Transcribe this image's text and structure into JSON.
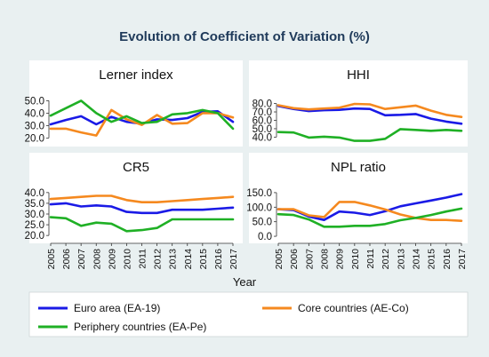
{
  "chart_data": {
    "title": "Evolution of Coefficient of Variation (%)",
    "type": "line",
    "xlabel": "Year",
    "x": [
      2005,
      2006,
      2007,
      2008,
      2009,
      2010,
      2011,
      2012,
      2013,
      2014,
      2015,
      2016,
      2017
    ],
    "colors": {
      "euro": "#1a1ae6",
      "core": "#f5891f",
      "periphery": "#1fb025"
    },
    "legend": {
      "placement": "bottom",
      "items": [
        {
          "key": "euro",
          "label": "Euro area (EA-19)"
        },
        {
          "key": "core",
          "label": "Core countries (AE-Co)"
        },
        {
          "key": "periphery",
          "label": "Periphery countries (EA-Pe)"
        }
      ]
    },
    "panels": [
      {
        "title": "Lerner index",
        "yticks": [
          20.0,
          30.0,
          40.0,
          50.0
        ],
        "ytick_labels": [
          "20.0",
          "30.0",
          "40.0",
          "50.0"
        ],
        "ylim": [
          16,
          56
        ],
        "series": [
          {
            "key": "euro",
            "values": [
              31,
              34.5,
              37.5,
              31,
              37,
              33,
              31.5,
              35,
              34.5,
              36,
              41,
              41.5,
              33
            ]
          },
          {
            "key": "core",
            "values": [
              27.5,
              27.5,
              24.5,
              22,
              42.5,
              35,
              30.5,
              38.5,
              31.5,
              32,
              40,
              40,
              36.5
            ]
          },
          {
            "key": "periphery",
            "values": [
              38,
              44,
              50,
              40,
              33,
              37.5,
              32,
              33,
              39,
              40,
              42.5,
              40,
              27.5
            ]
          }
        ]
      },
      {
        "title": "HHI",
        "yticks": [
          40.0,
          50.0,
          60.0,
          70.0,
          80.0
        ],
        "ytick_labels": [
          "40.0",
          "50.0",
          "60.0",
          "70.0",
          "80.0"
        ],
        "ylim": [
          33,
          88
        ],
        "series": [
          {
            "key": "euro",
            "values": [
              77,
              73.5,
              71,
              72,
              72.5,
              74,
              73.5,
              66,
              66.5,
              67.5,
              62,
              58.5,
              56
            ]
          },
          {
            "key": "core",
            "values": [
              78,
              74.5,
              73,
              74,
              75,
              79.5,
              79,
              73.5,
              75.5,
              77.5,
              71.5,
              66.5,
              64
            ]
          },
          {
            "key": "periphery",
            "values": [
              46,
              45.5,
              39.5,
              40.5,
              39.5,
              35.5,
              35.5,
              38,
              49.5,
              48.5,
              47.5,
              48.5,
              47.5
            ]
          }
        ]
      },
      {
        "title": "CR5",
        "yticks": [
          20.0,
          25.0,
          30.0,
          35.0,
          40.0
        ],
        "ytick_labels": [
          "20.0",
          "25.0",
          "30.0",
          "35.0",
          "40.0"
        ],
        "ylim": [
          18,
          42
        ],
        "series": [
          {
            "key": "euro",
            "values": [
              34.5,
              35,
              33.5,
              34,
              33.5,
              31,
              30.5,
              30.5,
              32,
              32,
              32,
              32.5,
              33
            ]
          },
          {
            "key": "core",
            "values": [
              37,
              37.5,
              38,
              38.5,
              38.5,
              36.5,
              35.5,
              35.5,
              36,
              36.5,
              37,
              37.5,
              38
            ]
          },
          {
            "key": "periphery",
            "values": [
              28.5,
              28,
              24.5,
              26,
              25.5,
              22,
              22.5,
              23.5,
              27.5,
              27.5,
              27.5,
              27.5,
              27.5
            ]
          }
        ]
      },
      {
        "title": "NPL ratio",
        "yticks": [
          0.0,
          50.0,
          100.0,
          150.0
        ],
        "ytick_labels": [
          "0.0",
          "50.0",
          "100.0",
          "150.0"
        ],
        "ylim": [
          -12,
          165
        ],
        "series": [
          {
            "key": "euro",
            "values": [
              93,
              90,
              68,
              56,
              85,
              81,
              73,
              86,
              103,
              113,
              123,
              133,
              145
            ]
          },
          {
            "key": "core",
            "values": [
              93,
              93,
              72,
              66,
              118,
              118,
              106,
              92,
              75,
              63,
              56,
              56,
              53
            ]
          },
          {
            "key": "periphery",
            "values": [
              76,
              73,
              58,
              33,
              33,
              36,
              36,
              42,
              55,
              63,
              73,
              85,
              95
            ]
          }
        ]
      }
    ]
  }
}
